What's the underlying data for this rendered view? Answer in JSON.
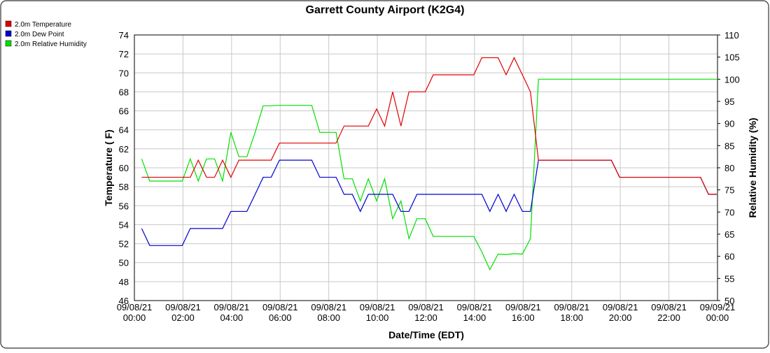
{
  "chart_data": {
    "type": "line",
    "title": "Garrett County Airport (K2G4)",
    "xlabel": "Date/Time (EDT)",
    "ylabel": "Temperature ( F)",
    "y2label": "Relative Humidity (%)",
    "legend": "top-left",
    "grid": true,
    "x": [
      0.3,
      0.63,
      0.97,
      1.3,
      1.63,
      1.97,
      2.3,
      2.63,
      2.97,
      3.3,
      3.63,
      3.97,
      4.3,
      4.63,
      4.97,
      5.3,
      5.63,
      5.97,
      6.3,
      6.63,
      6.97,
      7.3,
      7.63,
      7.97,
      8.3,
      8.63,
      8.97,
      9.3,
      9.63,
      9.97,
      10.3,
      10.63,
      10.97,
      11.3,
      11.63,
      11.97,
      12.3,
      12.63,
      12.97,
      13.3,
      13.63,
      13.97,
      14.3,
      14.63,
      14.97,
      15.3,
      15.63,
      15.97,
      16.3,
      16.63,
      16.97,
      17.3,
      17.63,
      17.97,
      18.3,
      18.63,
      18.97,
      19.3,
      19.63,
      19.97,
      20.3,
      20.63,
      20.97,
      21.3,
      21.63,
      21.97,
      22.3,
      22.63,
      22.97,
      23.3,
      23.63,
      23.97
    ],
    "xlim": [
      0,
      24
    ],
    "xticks": [
      {
        "value": 0,
        "label": "09/08/21 00:00"
      },
      {
        "value": 2,
        "label": "09/08/21 02:00"
      },
      {
        "value": 4,
        "label": "09/08/21 04:00"
      },
      {
        "value": 6,
        "label": "09/08/21 06:00"
      },
      {
        "value": 8,
        "label": "09/08/21 08:00"
      },
      {
        "value": 10,
        "label": "09/08/21 10:00"
      },
      {
        "value": 12,
        "label": "09/08/21 12:00"
      },
      {
        "value": 14,
        "label": "09/08/21 14:00"
      },
      {
        "value": 16,
        "label": "09/08/21 16:00"
      },
      {
        "value": 18,
        "label": "09/08/21 18:00"
      },
      {
        "value": 20,
        "label": "09/08/21 20:00"
      },
      {
        "value": 22,
        "label": "09/08/21 22:00"
      },
      {
        "value": 24,
        "label": "09/09/21 00:00"
      }
    ],
    "ylim": [
      46,
      74
    ],
    "yticks": [
      46,
      48,
      50,
      52,
      54,
      56,
      58,
      60,
      62,
      64,
      66,
      68,
      70,
      72,
      74
    ],
    "y2lim": [
      50,
      110
    ],
    "y2ticks": [
      50,
      55,
      60,
      65,
      70,
      75,
      80,
      85,
      90,
      95,
      100,
      105,
      110
    ],
    "series": [
      {
        "name": "2.0m Temperature",
        "color": "#e00000",
        "values": [
          59,
          59,
          59,
          59,
          59,
          59,
          59,
          60.8,
          59,
          59,
          60.8,
          59,
          60.8,
          60.8,
          60.8,
          60.8,
          60.8,
          62.6,
          62.6,
          62.6,
          62.6,
          62.6,
          62.6,
          62.6,
          62.6,
          64.4,
          64.4,
          64.4,
          64.4,
          66.2,
          64.4,
          68,
          64.4,
          68,
          68,
          68,
          69.8,
          69.8,
          69.8,
          69.8,
          69.8,
          69.8,
          71.6,
          71.6,
          71.6,
          69.8,
          71.6,
          69.8,
          68,
          60.8,
          60.8,
          60.8,
          60.8,
          60.8,
          60.8,
          60.8,
          60.8,
          60.8,
          60.8,
          59,
          59,
          59,
          59,
          59,
          59,
          59,
          59,
          59,
          59,
          59,
          57.2,
          57.2
        ]
      },
      {
        "name": "2.0m Dew Point",
        "color": "#0000d0",
        "values": [
          53.6,
          51.8,
          51.8,
          51.8,
          51.8,
          51.8,
          53.6,
          53.6,
          53.6,
          53.6,
          53.6,
          55.4,
          55.4,
          55.4,
          57.2,
          59,
          59,
          60.8,
          60.8,
          60.8,
          60.8,
          60.8,
          59,
          59,
          59,
          57.2,
          57.2,
          55.4,
          57.2,
          57.2,
          57.2,
          57.2,
          55.4,
          55.4,
          57.2,
          57.2,
          57.2,
          57.2,
          57.2,
          57.2,
          57.2,
          57.2,
          57.2,
          55.4,
          57.2,
          55.4,
          57.2,
          55.4,
          55.4,
          60.8,
          60.8,
          60.8,
          60.8,
          60.8,
          60.8,
          60.8,
          60.8,
          60.8,
          60.8,
          59,
          59,
          59,
          59,
          59,
          59,
          59,
          59,
          59,
          59,
          59,
          57.2,
          57.2
        ]
      },
      {
        "name": "2.0m Relative Humidity",
        "color": "#00e000",
        "axis": "y2",
        "values": [
          82,
          77,
          77,
          77,
          77,
          77,
          82,
          77,
          82,
          82,
          77,
          88,
          82.5,
          82.5,
          88,
          94,
          94,
          94.1,
          94.1,
          94.1,
          94.1,
          94.1,
          88,
          88,
          88,
          77.5,
          77.5,
          72.5,
          77.5,
          72.5,
          77.5,
          68.5,
          72.5,
          64,
          68.5,
          68.5,
          64.5,
          64.5,
          64.5,
          64.5,
          64.5,
          64.5,
          61,
          57,
          60.5,
          60.4,
          60.6,
          60.5,
          64,
          100,
          100,
          100,
          100,
          100,
          100,
          100,
          100,
          100,
          100,
          100,
          100,
          100,
          100,
          100,
          100,
          100,
          100,
          100,
          100,
          100,
          100,
          100
        ]
      }
    ]
  }
}
